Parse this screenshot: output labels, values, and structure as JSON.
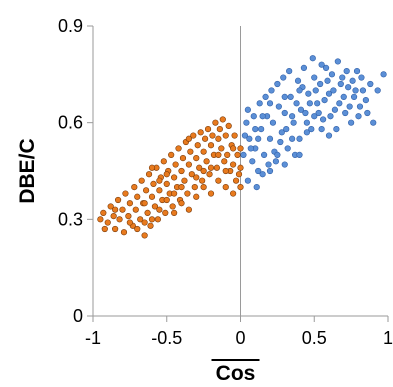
{
  "chart_data": {
    "type": "scatter",
    "xlabel": "Cos",
    "ylabel": "DBE/C",
    "xlabel_overline": true,
    "xlim": [
      -1,
      1
    ],
    "ylim": [
      0,
      0.9
    ],
    "x_ticks": [
      -1,
      -0.5,
      0,
      0.5,
      1
    ],
    "x_tick_labels": [
      "-1",
      "-0.5",
      "0",
      "0.5",
      "1"
    ],
    "y_ticks": [
      0,
      0.3,
      0.6,
      0.9
    ],
    "y_tick_labels": [
      "0",
      "0.3",
      "0.6",
      "0.9"
    ],
    "grid": false,
    "reference_line_x": 0,
    "series": [
      {
        "color": "#e87a1e",
        "edge_color": "#7a3a08",
        "points": [
          [
            -0.95,
            0.3
          ],
          [
            -0.93,
            0.32
          ],
          [
            -0.9,
            0.29
          ],
          [
            -0.88,
            0.34
          ],
          [
            -0.86,
            0.31
          ],
          [
            -0.85,
            0.27
          ],
          [
            -0.83,
            0.36
          ],
          [
            -0.82,
            0.3
          ],
          [
            -0.8,
            0.33
          ],
          [
            -0.79,
            0.26
          ],
          [
            -0.78,
            0.38
          ],
          [
            -0.76,
            0.31
          ],
          [
            -0.75,
            0.35
          ],
          [
            -0.73,
            0.28
          ],
          [
            -0.72,
            0.4
          ],
          [
            -0.71,
            0.33
          ],
          [
            -0.7,
            0.37
          ],
          [
            -0.68,
            0.3
          ],
          [
            -0.67,
            0.42
          ],
          [
            -0.66,
            0.35
          ],
          [
            -0.65,
            0.25
          ],
          [
            -0.64,
            0.39
          ],
          [
            -0.63,
            0.32
          ],
          [
            -0.62,
            0.44
          ],
          [
            -0.61,
            0.28
          ],
          [
            -0.6,
            0.37
          ],
          [
            -0.59,
            0.41
          ],
          [
            -0.58,
            0.34
          ],
          [
            -0.57,
            0.46
          ],
          [
            -0.56,
            0.3
          ],
          [
            -0.55,
            0.39
          ],
          [
            -0.54,
            0.43
          ],
          [
            -0.53,
            0.36
          ],
          [
            -0.52,
            0.48
          ],
          [
            -0.51,
            0.32
          ],
          [
            -0.5,
            0.41
          ],
          [
            -0.49,
            0.45
          ],
          [
            -0.48,
            0.38
          ],
          [
            -0.47,
            0.5
          ],
          [
            -0.46,
            0.34
          ],
          [
            -0.45,
            0.43
          ],
          [
            -0.44,
            0.47
          ],
          [
            -0.43,
            0.4
          ],
          [
            -0.42,
            0.52
          ],
          [
            -0.41,
            0.36
          ],
          [
            -0.4,
            0.45
          ],
          [
            -0.39,
            0.49
          ],
          [
            -0.38,
            0.42
          ],
          [
            -0.37,
            0.54
          ],
          [
            -0.36,
            0.38
          ],
          [
            -0.35,
            0.47
          ],
          [
            -0.34,
            0.51
          ],
          [
            -0.33,
            0.44
          ],
          [
            -0.32,
            0.56
          ],
          [
            -0.31,
            0.4
          ],
          [
            -0.3,
            0.49
          ],
          [
            -0.29,
            0.53
          ],
          [
            -0.28,
            0.46
          ],
          [
            -0.27,
            0.57
          ],
          [
            -0.26,
            0.42
          ],
          [
            -0.25,
            0.51
          ],
          [
            -0.24,
            0.55
          ],
          [
            -0.23,
            0.48
          ],
          [
            -0.22,
            0.58
          ],
          [
            -0.21,
            0.44
          ],
          [
            -0.2,
            0.53
          ],
          [
            -0.19,
            0.56
          ],
          [
            -0.18,
            0.5
          ],
          [
            -0.17,
            0.6
          ],
          [
            -0.16,
            0.46
          ],
          [
            -0.15,
            0.55
          ],
          [
            -0.14,
            0.58
          ],
          [
            -0.13,
            0.52
          ],
          [
            -0.12,
            0.61
          ],
          [
            -0.11,
            0.48
          ],
          [
            -0.1,
            0.56
          ],
          [
            -0.09,
            0.5
          ],
          [
            -0.08,
            0.59
          ],
          [
            -0.07,
            0.45
          ],
          [
            -0.06,
            0.53
          ],
          [
            -0.05,
            0.47
          ],
          [
            -0.04,
            0.56
          ],
          [
            -0.03,
            0.42
          ],
          [
            -0.02,
            0.5
          ],
          [
            -0.01,
            0.44
          ],
          [
            0.0,
            0.4
          ],
          [
            0.0,
            0.46
          ],
          [
            0.0,
            0.52
          ],
          [
            -0.6,
            0.3
          ],
          [
            -0.55,
            0.33
          ],
          [
            -0.5,
            0.36
          ],
          [
            -0.45,
            0.32
          ],
          [
            -0.4,
            0.35
          ],
          [
            -0.35,
            0.33
          ],
          [
            -0.3,
            0.37
          ],
          [
            -0.25,
            0.4
          ],
          [
            -0.2,
            0.38
          ],
          [
            -0.15,
            0.42
          ],
          [
            -0.1,
            0.4
          ],
          [
            -0.05,
            0.38
          ],
          [
            -0.7,
            0.27
          ],
          [
            -0.65,
            0.29
          ],
          [
            -0.75,
            0.29
          ],
          [
            -0.85,
            0.33
          ],
          [
            -0.92,
            0.27
          ],
          [
            -0.4,
            0.4
          ],
          [
            -0.3,
            0.43
          ],
          [
            -0.2,
            0.46
          ],
          [
            -0.1,
            0.45
          ],
          [
            -0.5,
            0.44
          ],
          [
            -0.6,
            0.46
          ],
          [
            -0.35,
            0.55
          ],
          [
            -0.25,
            0.45
          ],
          [
            -0.45,
            0.38
          ],
          [
            -0.55,
            0.42
          ],
          [
            -0.65,
            0.35
          ],
          [
            -0.15,
            0.5
          ],
          [
            -0.05,
            0.52
          ]
        ]
      },
      {
        "color": "#5b8fd6",
        "edge_color": "#2f5fa8",
        "points": [
          [
            0.05,
            0.42
          ],
          [
            0.08,
            0.48
          ],
          [
            0.1,
            0.52
          ],
          [
            0.12,
            0.45
          ],
          [
            0.14,
            0.58
          ],
          [
            0.16,
            0.5
          ],
          [
            0.18,
            0.62
          ],
          [
            0.2,
            0.55
          ],
          [
            0.22,
            0.6
          ],
          [
            0.24,
            0.48
          ],
          [
            0.26,
            0.65
          ],
          [
            0.28,
            0.57
          ],
          [
            0.3,
            0.63
          ],
          [
            0.32,
            0.52
          ],
          [
            0.34,
            0.68
          ],
          [
            0.36,
            0.6
          ],
          [
            0.38,
            0.66
          ],
          [
            0.4,
            0.55
          ],
          [
            0.42,
            0.71
          ],
          [
            0.44,
            0.63
          ],
          [
            0.46,
            0.69
          ],
          [
            0.48,
            0.58
          ],
          [
            0.5,
            0.74
          ],
          [
            0.52,
            0.66
          ],
          [
            0.54,
            0.72
          ],
          [
            0.56,
            0.61
          ],
          [
            0.58,
            0.77
          ],
          [
            0.6,
            0.69
          ],
          [
            0.62,
            0.75
          ],
          [
            0.64,
            0.64
          ],
          [
            0.66,
            0.79
          ],
          [
            0.68,
            0.72
          ],
          [
            0.7,
            0.68
          ],
          [
            0.72,
            0.76
          ],
          [
            0.74,
            0.65
          ],
          [
            0.76,
            0.73
          ],
          [
            0.78,
            0.7
          ],
          [
            0.8,
            0.62
          ],
          [
            0.82,
            0.74
          ],
          [
            0.85,
            0.67
          ],
          [
            0.88,
            0.72
          ],
          [
            0.9,
            0.6
          ],
          [
            0.93,
            0.7
          ],
          [
            0.97,
            0.75
          ],
          [
            0.02,
            0.5
          ],
          [
            0.03,
            0.56
          ],
          [
            0.04,
            0.6
          ],
          [
            0.06,
            0.55
          ],
          [
            0.09,
            0.62
          ],
          [
            0.11,
            0.4
          ],
          [
            0.13,
            0.66
          ],
          [
            0.15,
            0.44
          ],
          [
            0.17,
            0.68
          ],
          [
            0.19,
            0.47
          ],
          [
            0.21,
            0.7
          ],
          [
            0.23,
            0.51
          ],
          [
            0.25,
            0.72
          ],
          [
            0.27,
            0.54
          ],
          [
            0.29,
            0.74
          ],
          [
            0.31,
            0.58
          ],
          [
            0.33,
            0.76
          ],
          [
            0.35,
            0.62
          ],
          [
            0.37,
            0.5
          ],
          [
            0.39,
            0.73
          ],
          [
            0.41,
            0.64
          ],
          [
            0.43,
            0.77
          ],
          [
            0.45,
            0.6
          ],
          [
            0.47,
            0.66
          ],
          [
            0.49,
            0.8
          ],
          [
            0.51,
            0.7
          ],
          [
            0.53,
            0.63
          ],
          [
            0.55,
            0.78
          ],
          [
            0.57,
            0.67
          ],
          [
            0.59,
            0.73
          ],
          [
            0.61,
            0.62
          ],
          [
            0.63,
            0.7
          ],
          [
            0.65,
            0.58
          ],
          [
            0.67,
            0.66
          ],
          [
            0.69,
            0.74
          ],
          [
            0.71,
            0.63
          ],
          [
            0.73,
            0.71
          ],
          [
            0.75,
            0.6
          ],
          [
            0.77,
            0.68
          ],
          [
            0.79,
            0.76
          ],
          [
            0.81,
            0.65
          ],
          [
            0.83,
            0.7
          ],
          [
            0.86,
            0.63
          ],
          [
            0.2,
            0.45
          ],
          [
            0.25,
            0.5
          ],
          [
            0.3,
            0.47
          ],
          [
            0.35,
            0.55
          ],
          [
            0.4,
            0.5
          ],
          [
            0.45,
            0.57
          ],
          [
            0.5,
            0.62
          ],
          [
            0.55,
            0.58
          ],
          [
            0.6,
            0.56
          ],
          [
            0.1,
            0.58
          ],
          [
            0.15,
            0.62
          ],
          [
            0.2,
            0.66
          ],
          [
            0.3,
            0.68
          ],
          [
            0.4,
            0.7
          ],
          [
            0.05,
            0.64
          ],
          [
            0.07,
            0.52
          ],
          [
            0.12,
            0.55
          ]
        ]
      }
    ]
  }
}
